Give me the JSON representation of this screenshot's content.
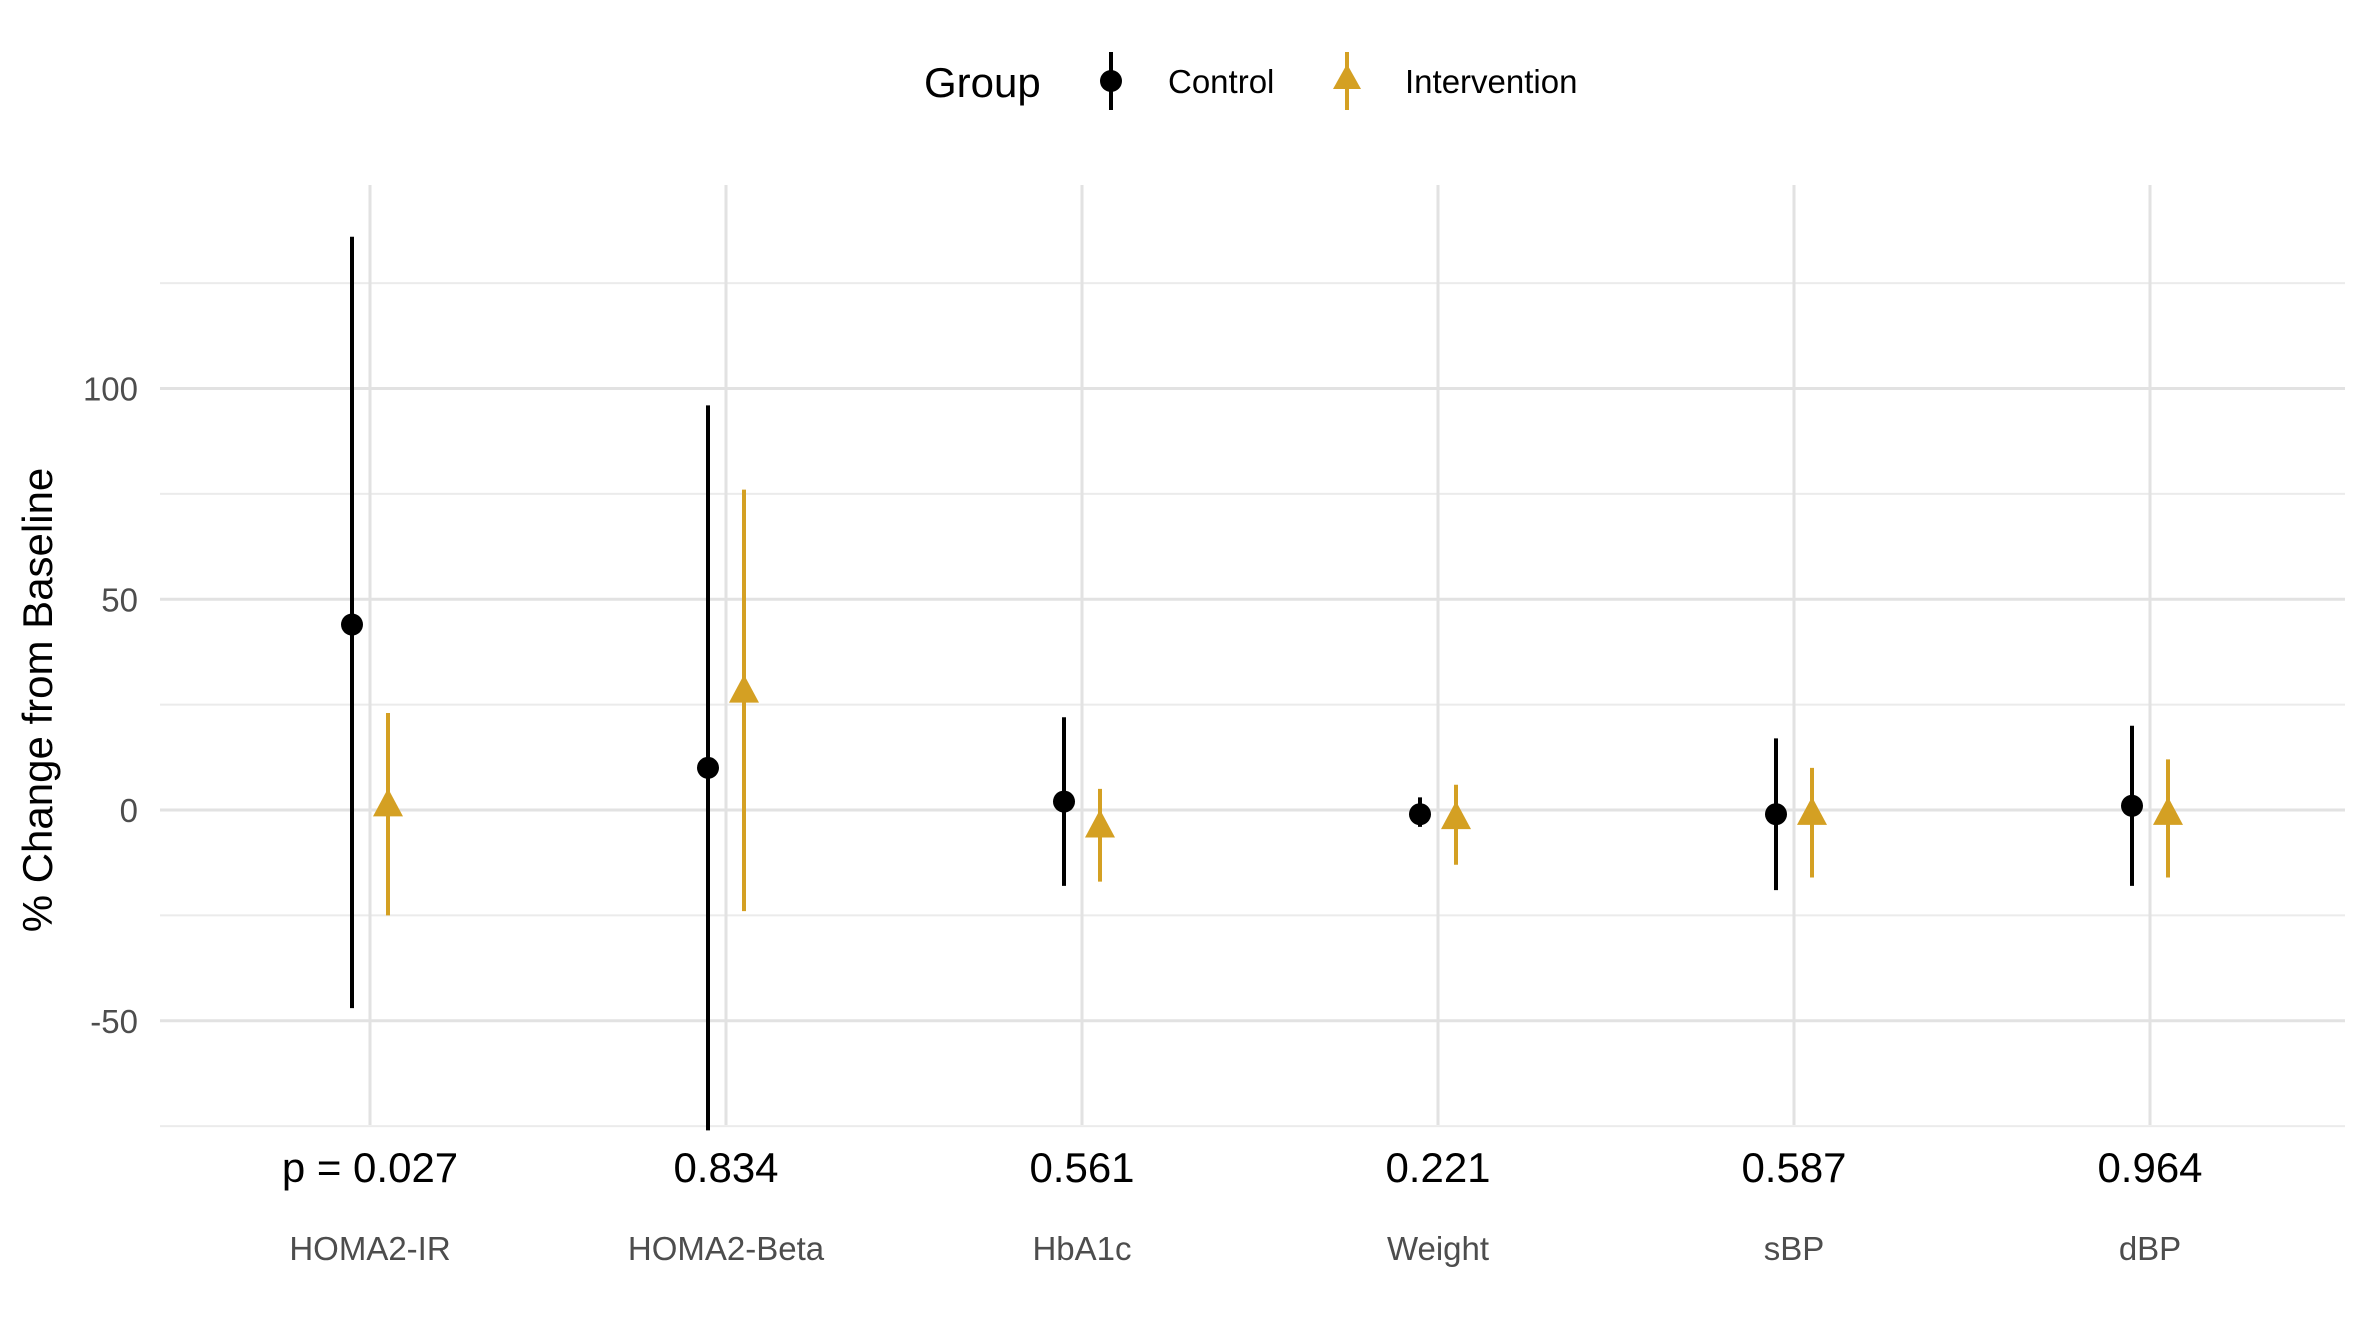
{
  "chart_data": {
    "type": "scatter",
    "subtype": "point-range",
    "title": "",
    "xlabel": "",
    "ylabel": "% Change from Baseline",
    "ylim": [
      -75,
      137
    ],
    "yticks": [
      -50,
      0,
      50,
      100
    ],
    "grid": true,
    "legend": {
      "title": "Group",
      "position": "top",
      "entries": [
        "Control",
        "Intervention"
      ]
    },
    "categories": [
      "HOMA2-IR",
      "HOMA2-Beta",
      "HbA1c",
      "Weight",
      "sBP",
      "dBP"
    ],
    "p_values": [
      "p = 0.027",
      "0.834",
      "0.561",
      "0.221",
      "0.587",
      "0.964"
    ],
    "series": [
      {
        "name": "Control",
        "color": "#000000",
        "marker": "circle",
        "estimate": [
          44,
          10,
          2,
          -1,
          -1,
          1
        ],
        "lower": [
          -47,
          -76,
          -18,
          -4,
          -19,
          -18
        ],
        "upper": [
          136,
          96,
          22,
          3,
          17,
          20
        ]
      },
      {
        "name": "Intervention",
        "color": "#D4A023",
        "marker": "triangle",
        "estimate": [
          1,
          28,
          -4,
          -2,
          -1,
          -1
        ],
        "lower": [
          -25,
          -24,
          -17,
          -13,
          -16,
          -16
        ],
        "upper": [
          23,
          76,
          5,
          6,
          10,
          12
        ]
      }
    ]
  }
}
